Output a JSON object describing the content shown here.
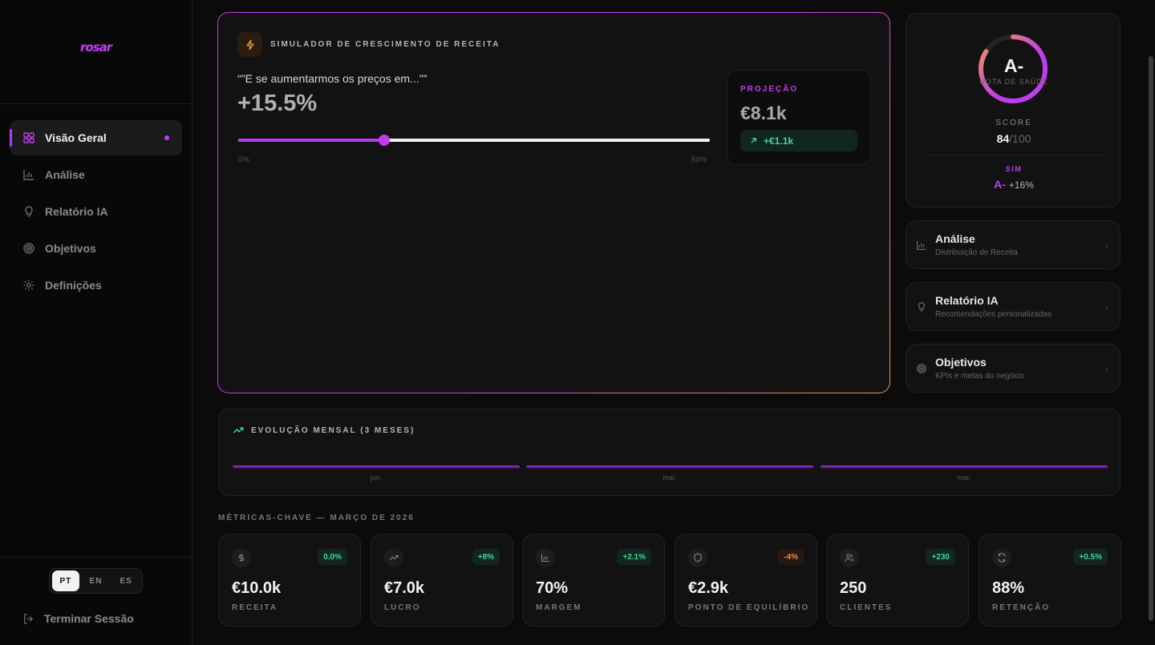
{
  "brand": {
    "logo": "rosar",
    "accent": "#c13cf0"
  },
  "sidebar": {
    "items": [
      {
        "label": "Visão Geral",
        "icon": "grid-icon",
        "active": true
      },
      {
        "label": "Análise",
        "icon": "bar-chart-icon"
      },
      {
        "label": "Relatório IA",
        "icon": "lightbulb-icon"
      },
      {
        "label": "Objetivos",
        "icon": "target-icon"
      },
      {
        "label": "Definições",
        "icon": "gear-icon"
      }
    ],
    "languages": [
      "PT",
      "EN",
      "ES"
    ],
    "selected_language": "PT",
    "logout": "Terminar Sessão"
  },
  "simulator": {
    "title": "SIMULADOR DE CRESCIMENTO DE RECEITA",
    "question": "“\"E se aumentarmos os preços em...\"”",
    "value": "+15.5%",
    "slider_fraction": 0.31,
    "min_label": "0%",
    "max_label": "50%",
    "projection": {
      "label": "PROJEÇÃO",
      "value": "€8.1k",
      "delta": "+€1.1k"
    }
  },
  "health": {
    "grade": "A-",
    "subtitle": "NOTA DE SAÚDE",
    "score_label": "SCORE",
    "score": "84",
    "score_max": "/100",
    "score_fraction": 0.84,
    "sim_label": "SIM",
    "sim_grade": "A-",
    "sim_delta": "+16%"
  },
  "links": [
    {
      "title": "Análise",
      "subtitle": "Distribuição de Receita",
      "icon": "bar-chart-icon"
    },
    {
      "title": "Relatório IA",
      "subtitle": "Recomendações personalizadas",
      "icon": "lightbulb-icon"
    },
    {
      "title": "Objetivos",
      "subtitle": "KPIs e metas do negócio",
      "icon": "target-icon"
    }
  ],
  "evolution": {
    "title": "EVOLUÇÃO MENSAL (3 MESES)",
    "months": [
      "jun.",
      "mar.",
      "mar."
    ]
  },
  "metrics_title": "MÉTRICAS-CHAVE — MARÇO DE 2026",
  "metrics": [
    {
      "value": "€10.0k",
      "label": "RECEITA",
      "badge": "0.0%",
      "tone": "g",
      "icon": "dollar-icon"
    },
    {
      "value": "€7.0k",
      "label": "LUCRO",
      "badge": "+8%",
      "tone": "g",
      "icon": "trending-up-icon"
    },
    {
      "value": "70%",
      "label": "MARGEM",
      "badge": "+2.1%",
      "tone": "g",
      "icon": "bar-chart-icon"
    },
    {
      "value": "€2.9k",
      "label": "PONTO DE EQUILÍBRIO",
      "badge": "-4%",
      "tone": "o",
      "icon": "shield-icon"
    },
    {
      "value": "250",
      "label": "CLIENTES",
      "badge": "+230",
      "tone": "g",
      "icon": "users-icon"
    },
    {
      "value": "88%",
      "label": "RETENÇÃO",
      "badge": "+0.5%",
      "tone": "g",
      "icon": "refresh-icon"
    }
  ]
}
